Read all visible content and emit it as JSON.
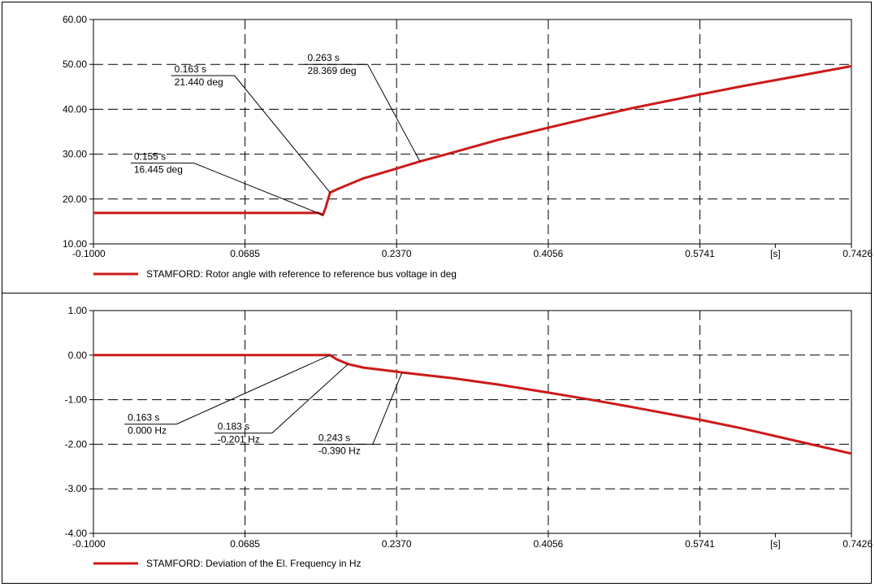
{
  "chart_data": [
    {
      "type": "line",
      "xlim": [
        -0.1,
        0.7426
      ],
      "ylim": [
        10,
        60
      ],
      "x_ticks": [
        "-0.1000",
        "0.0685",
        "0.2370",
        "0.4056",
        "0.5741",
        "[s]",
        "0.7426"
      ],
      "y_ticks": [
        "60.00",
        "50.00",
        "40.00",
        "30.00",
        "20.00",
        "10.00"
      ],
      "x_tick_values": [
        -0.1,
        0.0685,
        0.237,
        0.4056,
        0.5741,
        0.658,
        0.7426
      ],
      "y_tick_values": [
        60,
        50,
        40,
        30,
        20,
        10
      ],
      "grid_x": [
        0.0685,
        0.237,
        0.4056,
        0.5741
      ],
      "grid_y": [
        20,
        30,
        40,
        50
      ],
      "grid": true,
      "legend_placement": "bottom-left",
      "series": [
        {
          "name": "STAMFORD: Rotor angle with reference to reference bus voltage in deg",
          "color": "#cc1a1a",
          "x": [
            -0.1,
            0.0685,
            0.15,
            0.155,
            0.158,
            0.163,
            0.17,
            0.2,
            0.237,
            0.263,
            0.3,
            0.35,
            0.4056,
            0.45,
            0.5,
            0.5741,
            0.62,
            0.68,
            0.7426
          ],
          "y": [
            16.9,
            16.9,
            16.9,
            16.445,
            18.0,
            21.44,
            22.1,
            24.6,
            26.8,
            28.369,
            30.4,
            33.2,
            35.9,
            38.0,
            40.3,
            43.3,
            45.1,
            47.3,
            49.6
          ]
        }
      ],
      "annotations": [
        {
          "time": "0.163 s",
          "value": "21.440 deg",
          "x": 0.163,
          "y": 21.44,
          "label_x": -0.01,
          "label_y": 47.5
        },
        {
          "time": "0.263 s",
          "value": "28.369 deg",
          "x": 0.263,
          "y": 28.369,
          "label_x": 0.138,
          "label_y": 50.0
        },
        {
          "time": "0.155 s",
          "value": "16.445 deg",
          "x": 0.155,
          "y": 16.445,
          "label_x": -0.055,
          "label_y": 28.0
        }
      ]
    },
    {
      "type": "line",
      "xlim": [
        -0.1,
        0.7426
      ],
      "ylim": [
        -4,
        1
      ],
      "x_ticks": [
        "-0.1000",
        "0.0685",
        "0.2370",
        "0.4056",
        "0.5741",
        "[s]",
        "0.7426"
      ],
      "y_ticks": [
        "1.00",
        "0.00",
        "-1.00",
        "-2.00",
        "-3.00",
        "-4.00"
      ],
      "x_tick_values": [
        -0.1,
        0.0685,
        0.237,
        0.4056,
        0.5741,
        0.658,
        0.7426
      ],
      "y_tick_values": [
        1,
        0,
        -1,
        -2,
        -3,
        -4
      ],
      "grid_x": [
        0.0685,
        0.237,
        0.4056,
        0.5741
      ],
      "grid_y": [
        0,
        -1,
        -2,
        -3
      ],
      "grid": true,
      "legend_placement": "bottom-left",
      "series": [
        {
          "name": "STAMFORD: Deviation of the El. Frequency in Hz",
          "color": "#cc1a1a",
          "x": [
            -0.1,
            0.0685,
            0.163,
            0.17,
            0.183,
            0.2,
            0.237,
            0.243,
            0.3,
            0.35,
            0.4056,
            0.45,
            0.5,
            0.5741,
            0.62,
            0.68,
            0.7426
          ],
          "y": [
            0.0,
            0.0,
            0.0,
            -0.09,
            -0.201,
            -0.28,
            -0.37,
            -0.39,
            -0.52,
            -0.66,
            -0.84,
            -0.99,
            -1.17,
            -1.45,
            -1.64,
            -1.92,
            -2.21
          ]
        }
      ],
      "annotations": [
        {
          "time": "0.163 s",
          "value": "0.000 Hz",
          "x": 0.163,
          "y": 0.0,
          "label_x": -0.062,
          "label_y": -1.55
        },
        {
          "time": "0.183 s",
          "value": "-0.201 Hz",
          "x": 0.183,
          "y": -0.201,
          "label_x": 0.038,
          "label_y": -1.75
        },
        {
          "time": "0.243 s",
          "value": "-0.390 Hz",
          "x": 0.243,
          "y": -0.39,
          "label_x": 0.15,
          "label_y": -2.0
        }
      ]
    }
  ]
}
